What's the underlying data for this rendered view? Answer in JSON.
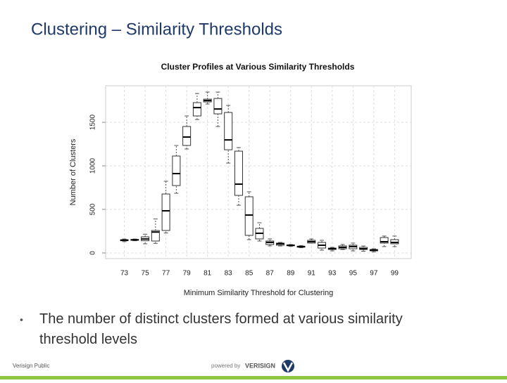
{
  "slide_title": "Clustering – Similarity Thresholds",
  "bullet": "The number of distinct clusters formed at various similarity threshold levels",
  "footer_left": "Verisign Public",
  "footer_powered": "powered by",
  "footer_brand": "VERISIGN",
  "chart_data": {
    "type": "box",
    "title": "Cluster Profiles at Various Similarity Thresholds",
    "xlabel": "Minimum Similarity Threshold for Clustering",
    "ylabel": "Number of Clusters",
    "x": [
      73,
      74,
      75,
      76,
      77,
      78,
      79,
      80,
      81,
      82,
      83,
      84,
      85,
      86,
      87,
      88,
      89,
      90,
      91,
      92,
      93,
      94,
      95,
      96,
      97,
      98,
      99
    ],
    "min": [
      130,
      140,
      105,
      110,
      230,
      685,
      1194,
      1532,
      1710,
      1452,
      1032,
      548,
      153,
      137,
      81,
      80,
      75,
      60,
      113,
      32,
      24,
      40,
      24,
      20,
      12,
      73,
      73
    ],
    "q1": [
      140,
      145,
      140,
      137,
      258,
      774,
      1234,
      1573,
      1734,
      1597,
      1185,
      661,
      202,
      161,
      97,
      89,
      82,
      66,
      113,
      56,
      40,
      48,
      48,
      40,
      24,
      113,
      105
    ],
    "median": [
      147,
      150,
      160,
      240,
      484,
      911,
      1331,
      1669,
      1750,
      1653,
      1298,
      790,
      435,
      226,
      121,
      105,
      88,
      72,
      129,
      89,
      48,
      64,
      73,
      48,
      32,
      129,
      121
    ],
    "q3": [
      152,
      155,
      185,
      258,
      677,
      1113,
      1452,
      1726,
      1766,
      1774,
      1613,
      1169,
      645,
      282,
      137,
      113,
      92,
      78,
      145,
      121,
      56,
      81,
      89,
      64,
      40,
      177,
      153
    ],
    "max": [
      160,
      160,
      215,
      390,
      823,
      1234,
      1573,
      1831,
      1847,
      1847,
      1694,
      1210,
      702,
      347,
      161,
      121,
      97,
      85,
      161,
      145,
      64,
      97,
      113,
      80,
      48,
      194,
      194
    ],
    "color": "#000000",
    "xlim": [
      71.2,
      100.6
    ],
    "xticks": [
      73,
      75,
      77,
      79,
      81,
      83,
      85,
      87,
      89,
      91,
      93,
      95,
      97,
      99
    ],
    "ylim": [
      -65,
      1920
    ],
    "yticks": [
      0,
      500,
      1000,
      1500
    ],
    "grid": true
  }
}
